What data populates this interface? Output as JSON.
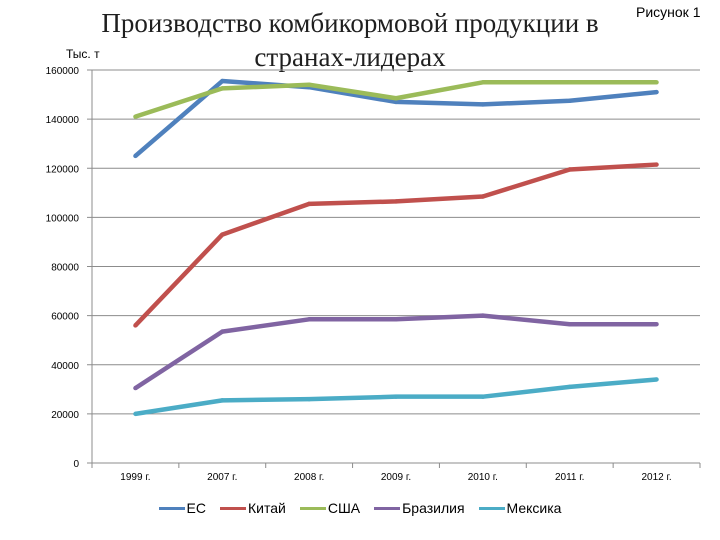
{
  "header": {
    "figure_label": "Рисунок 1"
  },
  "colors": {
    "ЕС": "#4f81bd",
    "Китай": "#c0504d",
    "США": "#9bbb59",
    "Бразилия": "#8064a2",
    "Мексика": "#4bacc6"
  },
  "chart_data": {
    "type": "line",
    "title": "Производство комбикормовой продукции в странах-лидерах",
    "ylabel": "Тыс. т",
    "xlabel": "",
    "ylim": [
      0,
      160000
    ],
    "yticks": [
      0,
      20000,
      40000,
      60000,
      80000,
      100000,
      120000,
      140000,
      160000
    ],
    "grid": true,
    "legend": "bottom",
    "categories": [
      "1999 г.",
      "2007 г.",
      "2008 г.",
      "2009 г.",
      "2010 г.",
      "2011 г.",
      "2012 г."
    ],
    "series": [
      {
        "name": "ЕС",
        "values": [
          125000,
          155500,
          153000,
          147000,
          146000,
          147500,
          151000
        ]
      },
      {
        "name": "Китай",
        "values": [
          56000,
          93000,
          105500,
          106500,
          108500,
          119500,
          121500
        ]
      },
      {
        "name": "США",
        "values": [
          141000,
          152500,
          154000,
          148500,
          155000,
          155000,
          155000
        ]
      },
      {
        "name": "Бразилия",
        "values": [
          30500,
          53500,
          58500,
          58500,
          60000,
          56500,
          56500
        ]
      },
      {
        "name": "Мексика",
        "values": [
          20000,
          25500,
          26000,
          27000,
          27000,
          31000,
          34000
        ]
      }
    ]
  }
}
